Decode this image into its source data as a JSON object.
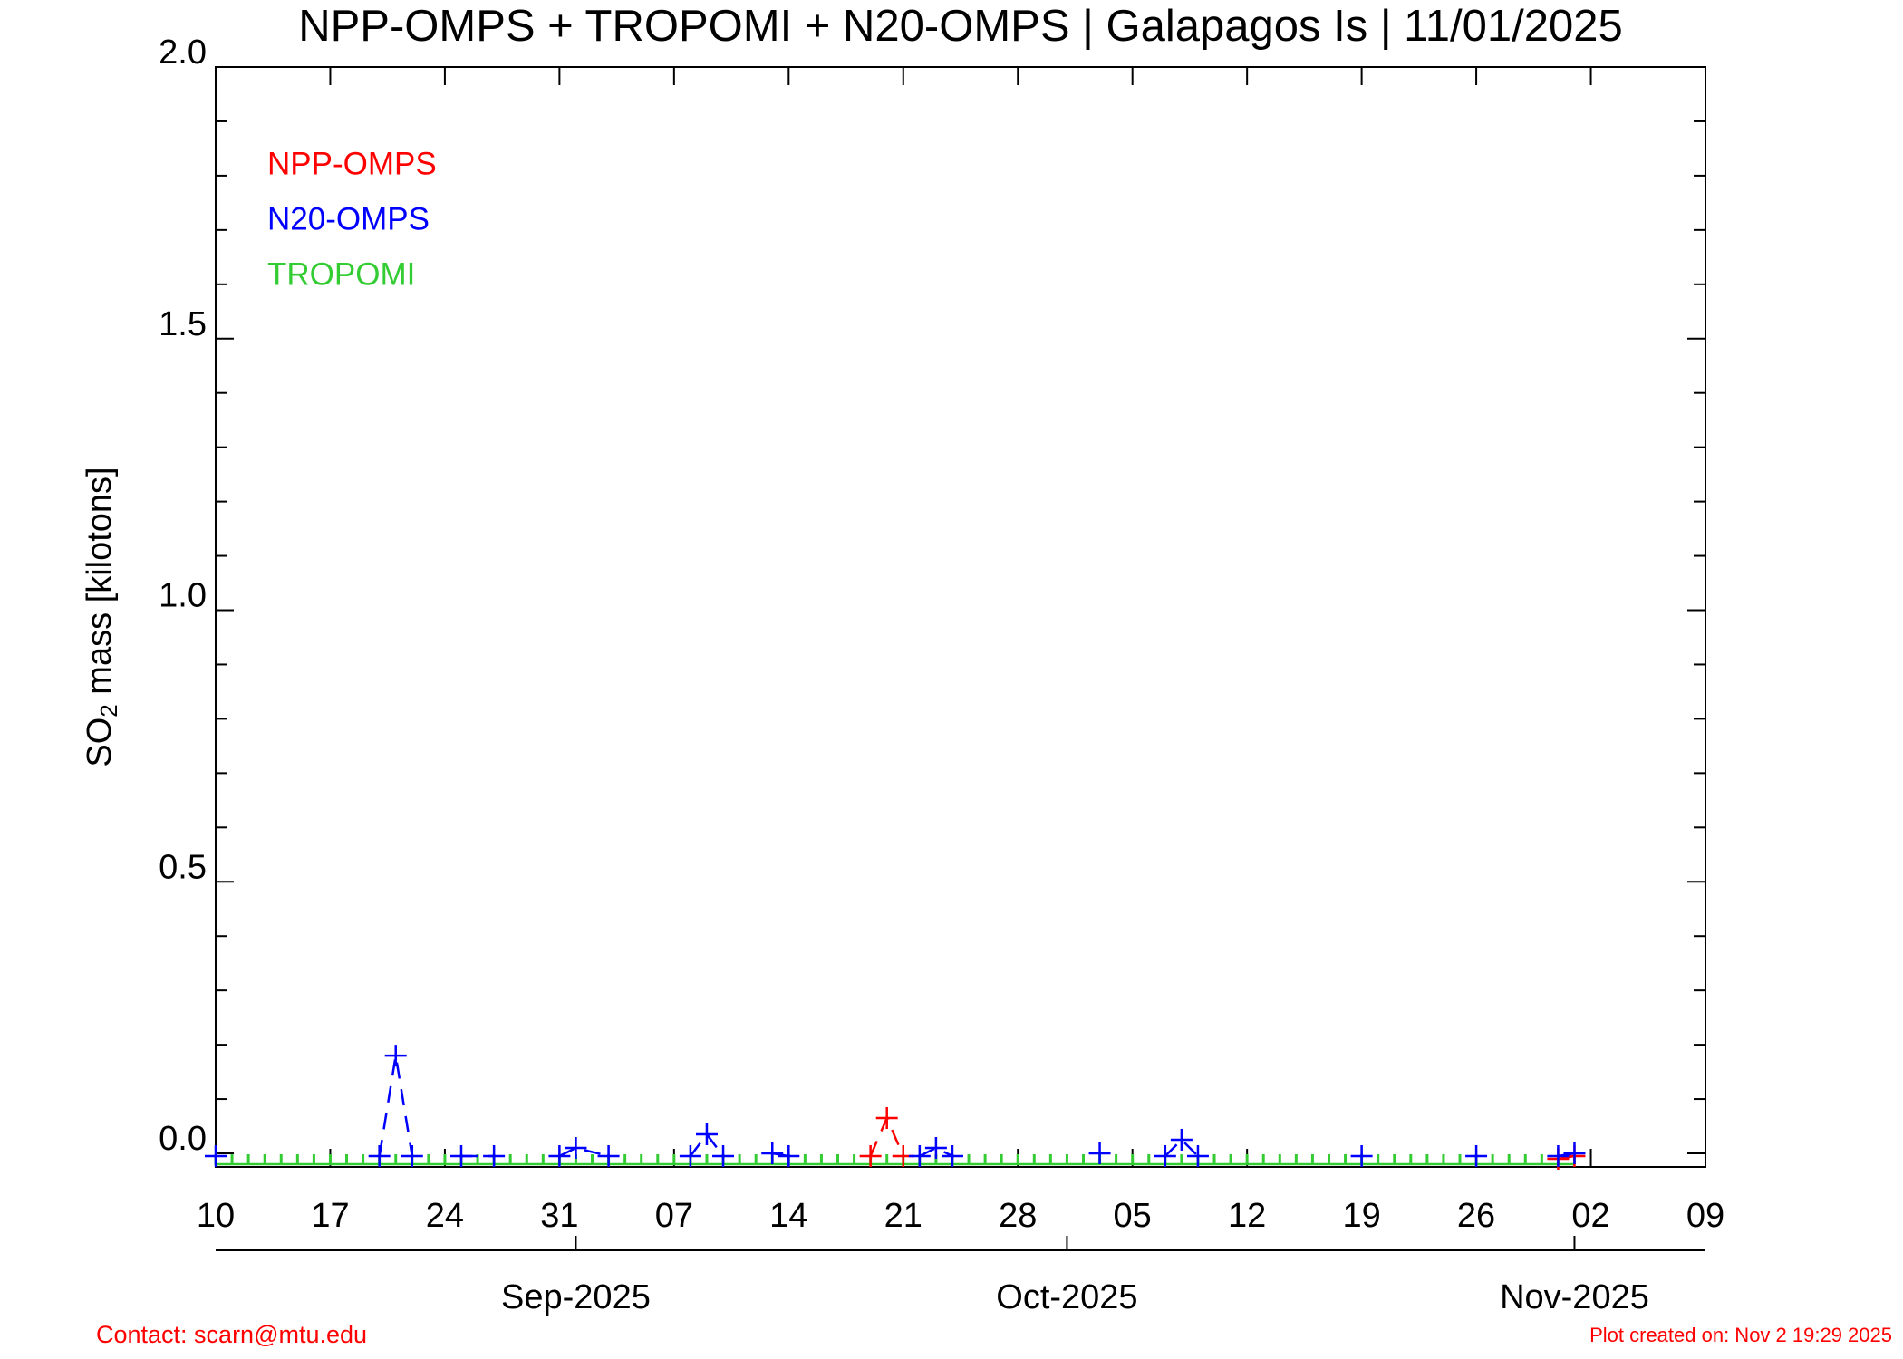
{
  "chart_data": {
    "type": "line",
    "title": "NPP-OMPS + TROPOMI + N20-OMPS | Galapagos Is | 11/01/2025",
    "y_label": {
      "main": "SO",
      "sub": "2",
      "rest": " mass [kilotons]"
    },
    "xlim": [
      "2025-08-10",
      "2025-11-09"
    ],
    "xticks": [
      {
        "value": "2025-08-10",
        "label": "10"
      },
      {
        "value": "2025-08-17",
        "label": "17"
      },
      {
        "value": "2025-08-24",
        "label": "24"
      },
      {
        "value": "2025-08-31",
        "label": "31"
      },
      {
        "value": "2025-09-07",
        "label": "07"
      },
      {
        "value": "2025-09-14",
        "label": "14"
      },
      {
        "value": "2025-09-21",
        "label": "21"
      },
      {
        "value": "2025-09-28",
        "label": "28"
      },
      {
        "value": "2025-10-05",
        "label": "05"
      },
      {
        "value": "2025-10-12",
        "label": "12"
      },
      {
        "value": "2025-10-19",
        "label": "19"
      },
      {
        "value": "2025-10-26",
        "label": "26"
      },
      {
        "value": "2025-11-02",
        "label": "02"
      },
      {
        "value": "2025-11-09",
        "label": "09"
      }
    ],
    "month_ticks": [
      {
        "value": "2025-09-01",
        "label": "Sep-2025"
      },
      {
        "value": "2025-10-01",
        "label": "Oct-2025"
      },
      {
        "value": "2025-11-01",
        "label": "Nov-2025"
      }
    ],
    "ylim": [
      -0.025,
      2.0
    ],
    "yticks": [
      {
        "value": 0,
        "label": "0.0"
      },
      0.5,
      {
        "value": 1,
        "label": "1.0"
      },
      1.5,
      {
        "value": 2,
        "label": "2.0"
      }
    ],
    "yminor_ticks": [
      0.1,
      0.2,
      0.3,
      0.4,
      0.6,
      0.7,
      0.8,
      0.9,
      1.1,
      1.2,
      1.3,
      1.4,
      1.6,
      1.7,
      1.8,
      1.9
    ],
    "series": [
      {
        "name": "NPP-OMPS",
        "color": "#ff0000",
        "style": "dashed",
        "marker": "+",
        "x": [
          "2025-09-19",
          "2025-09-20",
          "2025-09-21",
          "2025-09-22",
          "2025-10-31",
          "2025-11-01"
        ],
        "values": [
          -0.005,
          0.065,
          -0.005,
          null,
          -0.01,
          -0.005
        ]
      },
      {
        "name": "N20-OMPS",
        "color": "#0000ff",
        "style": "dashed",
        "marker": "+",
        "x": [
          "2025-08-10",
          "2025-08-11",
          "2025-08-20",
          "2025-08-21",
          "2025-08-22",
          "2025-08-23",
          "2025-08-25",
          "2025-08-27",
          "2025-08-28",
          "2025-08-31",
          "2025-09-01",
          "2025-09-03",
          "2025-09-04",
          "2025-09-08",
          "2025-09-09",
          "2025-09-10",
          "2025-09-11",
          "2025-09-13",
          "2025-09-14",
          "2025-09-15",
          "2025-09-22",
          "2025-09-23",
          "2025-09-24",
          "2025-09-25",
          "2025-10-03",
          "2025-10-04",
          "2025-10-07",
          "2025-10-08",
          "2025-10-09",
          "2025-10-10",
          "2025-10-19",
          "2025-10-20",
          "2025-10-26",
          "2025-10-27",
          "2025-10-31",
          "2025-11-01"
        ],
        "values": [
          -0.005,
          null,
          -0.005,
          0.18,
          -0.005,
          null,
          -0.005,
          -0.005,
          null,
          -0.005,
          0.01,
          -0.005,
          null,
          -0.005,
          0.035,
          -0.005,
          null,
          0,
          -0.005,
          null,
          -0.005,
          0.01,
          -0.005,
          null,
          0,
          null,
          -0.005,
          0.025,
          -0.005,
          null,
          -0.005,
          null,
          -0.005,
          null,
          -0.005,
          0
        ]
      },
      {
        "name": "TROPOMI",
        "color": "#33cc33",
        "style": "solid",
        "marker": "tick",
        "x": [
          "2025-08-10",
          "2025-08-11",
          "2025-08-12",
          "2025-08-13",
          "2025-08-14",
          "2025-08-15",
          "2025-08-16",
          "2025-08-17",
          "2025-08-18",
          "2025-08-19",
          "2025-08-20",
          "2025-08-21",
          "2025-08-22",
          "2025-08-23",
          "2025-08-24",
          "2025-08-25",
          "2025-08-26",
          "2025-08-27",
          "2025-08-28",
          "2025-08-29",
          "2025-08-30",
          "2025-08-31",
          "2025-09-01",
          "2025-09-02",
          "2025-09-03",
          "2025-09-04",
          "2025-09-05",
          "2025-09-06",
          "2025-09-07",
          "2025-09-08",
          "2025-09-09",
          "2025-09-10",
          "2025-09-11",
          "2025-09-12",
          "2025-09-13",
          "2025-09-14",
          "2025-09-15",
          "2025-09-16",
          "2025-09-17",
          "2025-09-18",
          "2025-09-19",
          "2025-09-20",
          "2025-09-21",
          "2025-09-22",
          "2025-09-23",
          "2025-09-24",
          "2025-09-25",
          "2025-09-26",
          "2025-09-27",
          "2025-09-28",
          "2025-09-29",
          "2025-09-30",
          "2025-10-01",
          "2025-10-02",
          "2025-10-03",
          "2025-10-04",
          "2025-10-05",
          "2025-10-06",
          "2025-10-07",
          "2025-10-08",
          "2025-10-09",
          "2025-10-10",
          "2025-10-11",
          "2025-10-12",
          "2025-10-13",
          "2025-10-14",
          "2025-10-15",
          "2025-10-16",
          "2025-10-17",
          "2025-10-18",
          "2025-10-19",
          "2025-10-20",
          "2025-10-21",
          "2025-10-22",
          "2025-10-23",
          "2025-10-24",
          "2025-10-25",
          "2025-10-26",
          "2025-10-27",
          "2025-10-28",
          "2025-10-29",
          "2025-10-30",
          "2025-10-31",
          "2025-11-01"
        ],
        "values": [
          -0.02,
          -0.02,
          -0.02,
          -0.02,
          -0.02,
          -0.02,
          -0.02,
          -0.02,
          -0.02,
          -0.02,
          -0.02,
          -0.02,
          -0.02,
          -0.02,
          -0.02,
          -0.02,
          -0.02,
          -0.02,
          -0.02,
          -0.02,
          -0.02,
          -0.02,
          -0.02,
          -0.02,
          -0.02,
          -0.02,
          -0.02,
          -0.02,
          -0.02,
          -0.02,
          -0.02,
          -0.02,
          -0.02,
          -0.02,
          -0.02,
          -0.02,
          -0.02,
          -0.02,
          -0.02,
          -0.02,
          -0.02,
          -0.02,
          -0.02,
          -0.02,
          -0.02,
          -0.02,
          -0.02,
          -0.02,
          -0.02,
          -0.02,
          -0.02,
          -0.02,
          -0.02,
          -0.02,
          -0.02,
          -0.02,
          -0.02,
          -0.02,
          -0.02,
          -0.02,
          -0.02,
          -0.02,
          -0.02,
          -0.02,
          -0.02,
          -0.02,
          -0.02,
          -0.02,
          -0.02,
          -0.02,
          -0.02,
          -0.02,
          -0.02,
          -0.02,
          -0.02,
          -0.02,
          -0.02,
          -0.02,
          -0.02,
          -0.02,
          -0.02,
          -0.02,
          -0.02,
          -0.02
        ]
      }
    ],
    "footer": {
      "contact": "Contact: scarn@mtu.edu",
      "created": "Plot created on: Nov  2 19:29 2025"
    }
  }
}
